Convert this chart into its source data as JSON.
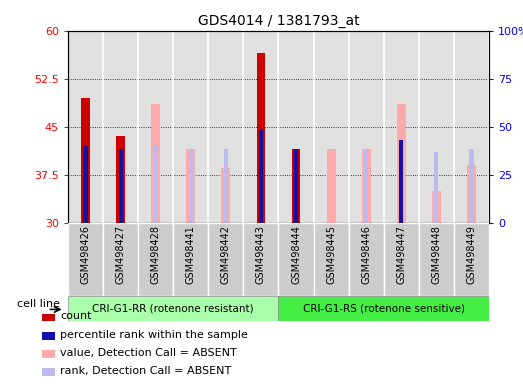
{
  "title": "GDS4014 / 1381793_at",
  "samples": [
    "GSM498426",
    "GSM498427",
    "GSM498428",
    "GSM498441",
    "GSM498442",
    "GSM498443",
    "GSM498444",
    "GSM498445",
    "GSM498446",
    "GSM498447",
    "GSM498448",
    "GSM498449"
  ],
  "group1_count": 6,
  "group2_count": 6,
  "group1_label": "CRI-G1-RR (rotenone resistant)",
  "group2_label": "CRI-G1-RS (rotenone sensitive)",
  "cell_line_label": "cell line",
  "count_values": [
    49.5,
    43.5,
    null,
    null,
    null,
    56.5,
    41.5,
    null,
    null,
    null,
    null,
    null
  ],
  "percentile_values": [
    42.0,
    41.5,
    null,
    null,
    null,
    44.5,
    41.5,
    null,
    null,
    43.0,
    null,
    null
  ],
  "value_absent": [
    null,
    null,
    48.5,
    41.5,
    38.5,
    null,
    null,
    41.5,
    41.5,
    48.5,
    35.0,
    39.0
  ],
  "rank_absent": [
    null,
    null,
    42.0,
    41.5,
    41.5,
    null,
    null,
    null,
    41.5,
    null,
    41.0,
    41.5
  ],
  "ylim_left": [
    30,
    60
  ],
  "yticks_left": [
    30,
    37.5,
    45,
    52.5,
    60
  ],
  "ylim_right": [
    0,
    100
  ],
  "yticks_right": [
    0,
    25,
    50,
    75,
    100
  ],
  "colors": {
    "count": "#cc0000",
    "percentile": "#1111aa",
    "value_absent": "#ffaaaa",
    "rank_absent": "#bbbbee",
    "group1_bg": "#aaffaa",
    "group2_bg": "#44ee44",
    "plot_bg": "#e0e0e0",
    "col_bg": "#cccccc"
  },
  "legend_items": [
    {
      "label": "count",
      "color": "#cc0000"
    },
    {
      "label": "percentile rank within the sample",
      "color": "#1111aa"
    },
    {
      "label": "value, Detection Call = ABSENT",
      "color": "#ffaaaa"
    },
    {
      "label": "rank, Detection Call = ABSENT",
      "color": "#bbbbee"
    }
  ]
}
